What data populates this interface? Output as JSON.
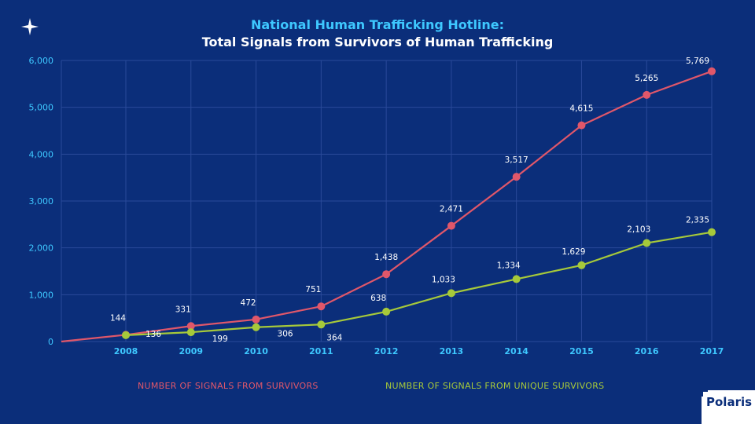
{
  "title_line1": "National Human Trafficking Hotline:",
  "title_line2": "Total Signals from Survivors of Human Trafficking",
  "colors": {
    "background": "#0b2e7a",
    "grid": "#2a4a9a",
    "axis_text": "#3ec8ff",
    "series_a": "#e0576a",
    "series_b": "#a6c93a"
  },
  "icons": {
    "top_left": "sparkle-icon",
    "brand_logo": "polaris-logo"
  },
  "brand": {
    "name": "Polaris"
  },
  "chart_data": {
    "type": "line",
    "title": "National Human Trafficking Hotline: Total Signals from Survivors of Human Trafficking",
    "categories": [
      "2008",
      "2009",
      "2010",
      "2011",
      "2012",
      "2013",
      "2014",
      "2015",
      "2016",
      "2017"
    ],
    "y_ticks": [
      "0",
      "1,000",
      "2,000",
      "3,000",
      "4,000",
      "5,000",
      "6,000"
    ],
    "ylim": [
      0,
      6000
    ],
    "series": [
      {
        "name": "NUMBER OF SIGNALS FROM SURVIVORS",
        "values": [
          144,
          331,
          472,
          751,
          1438,
          2471,
          3517,
          4615,
          5265,
          5769
        ],
        "labels": [
          "144",
          "331",
          "472",
          "751",
          "1,438",
          "2,471",
          "3,517",
          "4,615",
          "5,265",
          "5,769"
        ]
      },
      {
        "name": "NUMBER OF SIGNALS FROM UNIQUE SURVIVORS",
        "values": [
          136,
          199,
          306,
          364,
          638,
          1033,
          1334,
          1629,
          2103,
          2335
        ],
        "labels": [
          "136",
          "199",
          "306",
          "364",
          "638",
          "1,033",
          "1,334",
          "1,629",
          "2,103",
          "2,335"
        ]
      }
    ],
    "grid": true,
    "legend_position": "bottom"
  }
}
